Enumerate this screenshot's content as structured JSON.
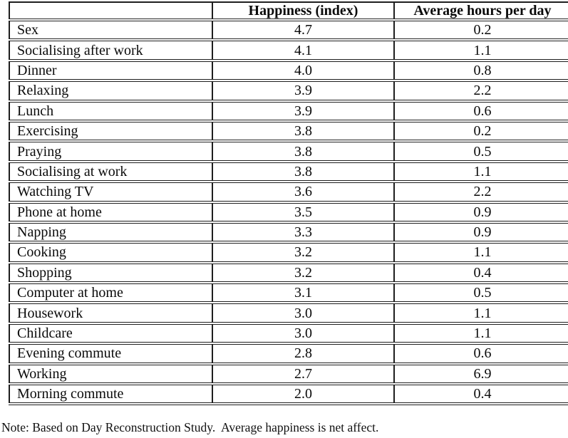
{
  "table": {
    "columns": [
      "",
      "Happiness (index)",
      "Average hours per day"
    ],
    "rows": [
      {
        "activity": "Sex",
        "happiness": "4.7",
        "hours": "0.2"
      },
      {
        "activity": "Socialising after work",
        "happiness": "4.1",
        "hours": "1.1"
      },
      {
        "activity": "Dinner",
        "happiness": "4.0",
        "hours": "0.8"
      },
      {
        "activity": "Relaxing",
        "happiness": "3.9",
        "hours": "2.2"
      },
      {
        "activity": "Lunch",
        "happiness": "3.9",
        "hours": "0.6"
      },
      {
        "activity": "Exercising",
        "happiness": "3.8",
        "hours": "0.2"
      },
      {
        "activity": "Praying",
        "happiness": "3.8",
        "hours": "0.5"
      },
      {
        "activity": "Socialising at work",
        "happiness": "3.8",
        "hours": "1.1"
      },
      {
        "activity": "Watching TV",
        "happiness": "3.6",
        "hours": "2.2"
      },
      {
        "activity": "Phone at home",
        "happiness": "3.5",
        "hours": "0.9"
      },
      {
        "activity": "Napping",
        "happiness": "3.3",
        "hours": "0.9"
      },
      {
        "activity": "Cooking",
        "happiness": "3.2",
        "hours": "1.1"
      },
      {
        "activity": "Shopping",
        "happiness": "3.2",
        "hours": "0.4"
      },
      {
        "activity": "Computer at home",
        "happiness": "3.1",
        "hours": "0.5"
      },
      {
        "activity": "Housework",
        "happiness": "3.0",
        "hours": "1.1"
      },
      {
        "activity": "Childcare",
        "happiness": "3.0",
        "hours": "1.1"
      },
      {
        "activity": "Evening commute",
        "happiness": "2.8",
        "hours": "0.6"
      },
      {
        "activity": "Working",
        "happiness": "2.7",
        "hours": "6.9"
      },
      {
        "activity": "Morning commute",
        "happiness": "2.0",
        "hours": "0.4"
      }
    ]
  },
  "note": "Note: Based on Day Reconstruction Study.  Average happiness is net affect."
}
